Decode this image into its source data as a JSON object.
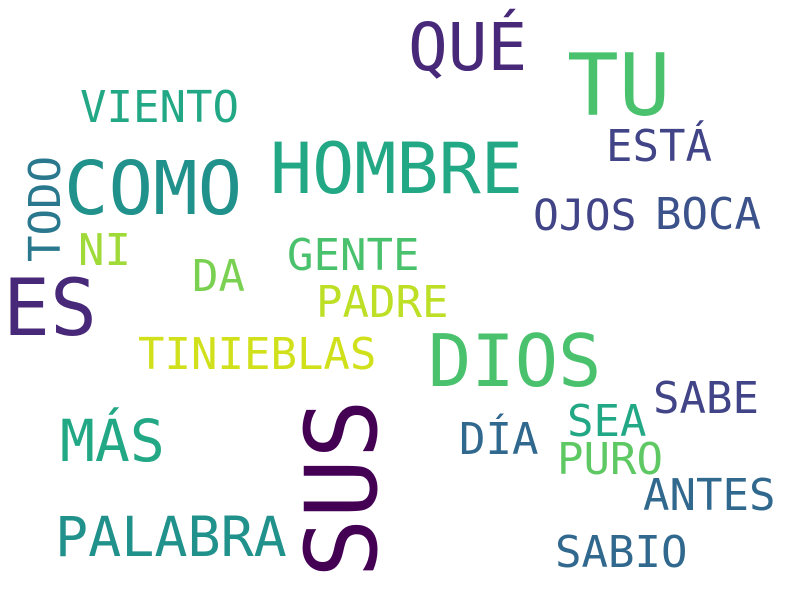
{
  "words": [
    {
      "text": "QUÉ",
      "color": "#482878"
    },
    {
      "text": "TU",
      "color": "#4ac16d"
    },
    {
      "text": "VIENTO",
      "color": "#22a884"
    },
    {
      "text": "ESTÁ",
      "color": "#414487"
    },
    {
      "text": "HOMBRE",
      "color": "#22a884"
    },
    {
      "text": "COMO",
      "color": "#21918c"
    },
    {
      "text": "TODO",
      "color": "#2a788e"
    },
    {
      "text": "OJOS",
      "color": "#414487"
    },
    {
      "text": "BOCA",
      "color": "#3b528b"
    },
    {
      "text": "NI",
      "color": "#a0da39"
    },
    {
      "text": "GENTE",
      "color": "#4ac16d"
    },
    {
      "text": "DA",
      "color": "#7ad151"
    },
    {
      "text": "ES",
      "color": "#482878"
    },
    {
      "text": "PADRE",
      "color": "#bddf26"
    },
    {
      "text": "TINIEBLAS",
      "color": "#d0e11c"
    },
    {
      "text": "DIOS",
      "color": "#4ac16d"
    },
    {
      "text": "SABE",
      "color": "#414487"
    },
    {
      "text": "MÁS",
      "color": "#22a884"
    },
    {
      "text": "SUS",
      "color": "#440154"
    },
    {
      "text": "DÍA",
      "color": "#31688e"
    },
    {
      "text": "SEA",
      "color": "#22a884"
    },
    {
      "text": "PURO",
      "color": "#5ec962"
    },
    {
      "text": "ANTES",
      "color": "#31688e"
    },
    {
      "text": "PALABRA",
      "color": "#21918c"
    },
    {
      "text": "SABIO",
      "color": "#31688e"
    }
  ]
}
